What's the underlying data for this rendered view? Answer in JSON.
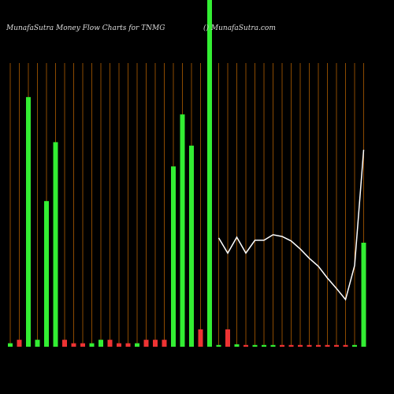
{
  "chart_data": {
    "type": "bar",
    "title": "MunafaSutra  Money Flow  Charts for TNMG",
    "subtitle": "() MunafaSutra.com",
    "ylim": [
      0,
      100
    ],
    "grid_color": "#8b4a00",
    "series": [
      {
        "type": "bar",
        "values": [
          1,
          2,
          72,
          2,
          42,
          59,
          2,
          1,
          1,
          1,
          2,
          2,
          1,
          1,
          1,
          2,
          2,
          2,
          52,
          67,
          58,
          5,
          100,
          0.5,
          5,
          0.7,
          0.5,
          0.5,
          0.5,
          0.5,
          0.5,
          0.5,
          0.5,
          0.5,
          0.5,
          0.5,
          0.5,
          0.5,
          0.5,
          30
        ],
        "colors": [
          "#33ee33",
          "#ee3333",
          "#33ee33",
          "#33ee33",
          "#33ee33",
          "#33ee33",
          "#ee3333",
          "#ee3333",
          "#ee3333",
          "#33ee33",
          "#33ee33",
          "#ee3333",
          "#ee3333",
          "#ee3333",
          "#33ee33",
          "#ee3333",
          "#ee3333",
          "#ee3333",
          "#33ee33",
          "#33ee33",
          "#33ee33",
          "#ee3333",
          "#33ee33",
          "#33ee33",
          "#ee3333",
          "#33ee33",
          "#ee3333",
          "#33ee33",
          "#33ee33",
          "#33ee33",
          "#ee3333",
          "#ee3333",
          "#ee3333",
          "#ee3333",
          "#ee3333",
          "#ee3333",
          "#ee3333",
          "#ee3333",
          "#33ee33",
          "#33ee33"
        ]
      },
      {
        "type": "line",
        "color": "#ffffff",
        "values": [
          null,
          null,
          null,
          null,
          null,
          null,
          null,
          null,
          null,
          null,
          null,
          null,
          null,
          null,
          null,
          null,
          null,
          null,
          null,
          null,
          null,
          null,
          null,
          31.4,
          27,
          31.6,
          27,
          30.7,
          30.7,
          32.3,
          31.8,
          30.5,
          28.2,
          25.5,
          23.2,
          19.8,
          16.8,
          13.6,
          23.4,
          56.8
        ]
      }
    ]
  }
}
